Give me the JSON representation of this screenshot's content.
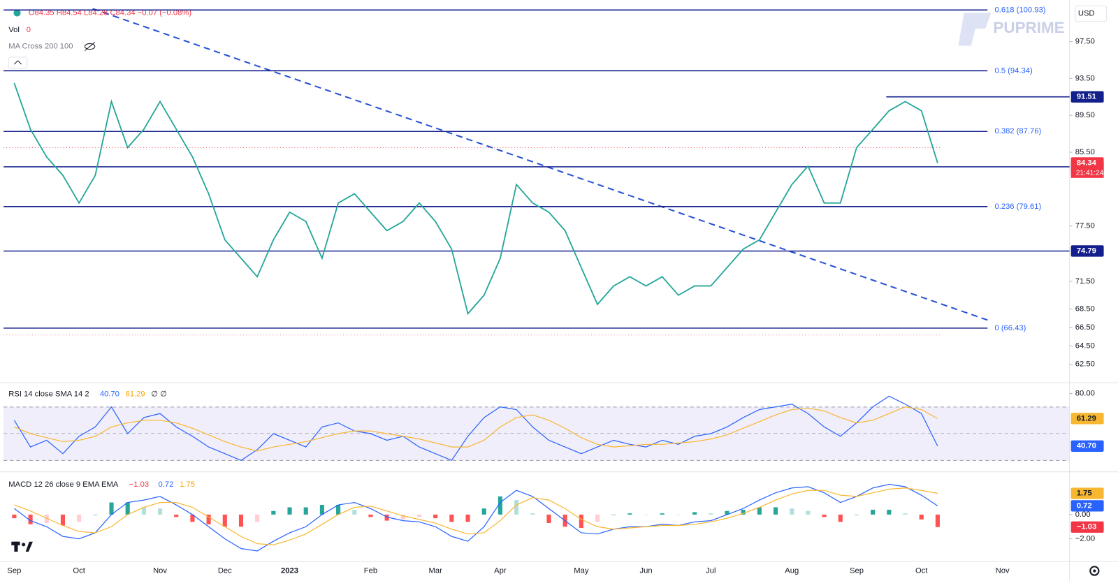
{
  "chart_data": [
    {
      "type": "line",
      "header": "O84.35 H84.54 L84.28 C84.34 −0.07 (−0.08%)",
      "volume_label": "Vol",
      "volume": 0,
      "indicator": "MA Cross 200 100",
      "currency": "USD",
      "brand": "PUPRIME",
      "categories": [
        "Sep",
        null,
        null,
        null,
        "Oct",
        null,
        null,
        null,
        null,
        "Nov",
        null,
        null,
        null,
        "Dec",
        null,
        null,
        null,
        "2023",
        null,
        null,
        null,
        null,
        "Feb",
        null,
        null,
        null,
        "Mar",
        null,
        null,
        null,
        "Apr",
        null,
        null,
        null,
        null,
        "May",
        null,
        null,
        null,
        "Jun",
        null,
        null,
        null,
        "Jul",
        null,
        null,
        null,
        null,
        "Aug",
        null,
        null,
        null,
        "Sep",
        null,
        null,
        null,
        "Oct",
        null,
        null,
        null,
        null,
        "Nov"
      ],
      "series": [
        {
          "color": "#26a69a",
          "values": [
            93,
            88,
            85,
            83,
            80,
            83,
            91,
            86,
            88,
            91,
            88,
            85,
            81,
            76,
            74,
            72,
            76,
            79,
            78,
            74,
            80,
            81,
            79,
            77,
            78,
            80,
            78,
            75,
            68,
            70,
            74,
            82,
            80,
            79,
            77,
            73,
            69,
            71,
            72,
            71,
            72,
            70,
            71,
            71,
            73,
            75,
            76,
            79,
            82,
            84,
            80,
            80,
            86,
            88,
            90,
            91,
            90,
            84.34,
            null,
            null,
            null,
            null
          ]
        }
      ],
      "ylim": [
        60.5,
        102
      ],
      "yticks": [
        {
          "value": 97.5,
          "label": "97.50"
        },
        {
          "value": 93.5,
          "label": "93.50"
        },
        {
          "value": 89.5,
          "label": "89.50"
        },
        {
          "value": 85.5,
          "label": "85.50"
        },
        {
          "value": 77.5,
          "label": "77.50"
        },
        {
          "value": 71.5,
          "label": "71.50"
        },
        {
          "value": 68.5,
          "label": "68.50"
        },
        {
          "value": 66.5,
          "label": "66.50"
        },
        {
          "value": 64.5,
          "label": "64.50"
        },
        {
          "value": 62.5,
          "label": "62.50"
        }
      ],
      "fib": [
        {
          "value": 100.93,
          "label": "0.618 (100.93)"
        },
        {
          "value": 94.34,
          "label": "0.5 (94.34)"
        },
        {
          "value": 87.76,
          "label": "0.382 (87.76)"
        },
        {
          "value": 79.61,
          "label": "0.236 (79.61)"
        },
        {
          "value": 66.43,
          "label": "0 (66.43)"
        }
      ],
      "levels": [
        91.51,
        83.92,
        74.79
      ],
      "level_color": "#131f8c",
      "fib_label_color": "#2962ff",
      "current": 84.34,
      "countdown": "21:41:24",
      "current_color": "#f23645"
    },
    {
      "type": "line",
      "title": "RSI 14 close SMA 14 2",
      "flags": "∅ ∅",
      "ylim": [
        22.5,
        86.4
      ],
      "yticks": [
        {
          "value": 80,
          "label": "80.00"
        }
      ],
      "series": [
        {
          "color": "#2962ff",
          "values": [
            60,
            40,
            45,
            35,
            48,
            55,
            70,
            50,
            62,
            65,
            55,
            48,
            40,
            35,
            30,
            38,
            50,
            45,
            40,
            55,
            58,
            52,
            50,
            45,
            48,
            40,
            35,
            30,
            48,
            62,
            70,
            68,
            55,
            45,
            40,
            35,
            40,
            45,
            42,
            40,
            45,
            42,
            48,
            50,
            55,
            62,
            68,
            70,
            72,
            65,
            55,
            48,
            58,
            70,
            78,
            72,
            65,
            40.7
          ],
          "badge": {
            "value": 40.7,
            "label": "40.70"
          }
        },
        {
          "color": "#f7b731",
          "values": [
            55,
            50,
            47,
            44,
            45,
            48,
            55,
            58,
            60,
            60,
            58,
            54,
            49,
            44,
            40,
            37,
            40,
            42,
            44,
            47,
            50,
            52,
            52,
            50,
            48,
            46,
            43,
            40,
            40,
            45,
            55,
            62,
            64,
            60,
            54,
            47,
            42,
            40,
            41,
            42,
            42,
            43,
            44,
            46,
            49,
            54,
            59,
            64,
            68,
            69,
            67,
            62,
            58,
            60,
            65,
            70,
            68,
            61.29
          ],
          "badge": {
            "value": 61.29,
            "label": "61.29"
          }
        }
      ]
    },
    {
      "type": "line",
      "title": "MACD 12 26 close 9 EMA EMA",
      "ylim": [
        -4,
        3.35
      ],
      "yticks": [
        {
          "value": 0,
          "label": "0.00"
        },
        {
          "value": -2,
          "label": "−2.00"
        }
      ],
      "histogram": {
        "values": [
          -0.3,
          -0.8,
          -0.7,
          -0.9,
          -0.6,
          0,
          1,
          1,
          0.6,
          0.5,
          -0.2,
          -0.6,
          -0.8,
          -1,
          -1,
          -0.6,
          0.3,
          0.6,
          0.6,
          0.8,
          0.8,
          0.4,
          -0.2,
          -0.5,
          -0.4,
          -0.2,
          -0.3,
          -0.6,
          -0.6,
          0.5,
          1.5,
          1.2,
          0.1,
          -0.7,
          -1,
          -1.1,
          -0.6,
          0,
          0.1,
          0,
          0.1,
          0,
          0.2,
          0.1,
          0.3,
          0.4,
          0.6,
          0.6,
          0.5,
          0.3,
          -0.2,
          -0.6,
          0,
          0.4,
          0.4,
          0.1,
          -0.4,
          -1.03
        ],
        "badge": {
          "value": -1.03,
          "label": "−1.03"
        },
        "color": "#f23645"
      },
      "series": [
        {
          "color": "#2962ff",
          "values": [
            0.5,
            -0.5,
            -1,
            -1.8,
            -2,
            -1.5,
            0,
            1,
            1.2,
            1.5,
            0.8,
            0,
            -1,
            -2,
            -2.8,
            -3,
            -2.2,
            -1.5,
            -1,
            0,
            0.8,
            1,
            0.5,
            -0.2,
            -0.5,
            -0.6,
            -1,
            -1.8,
            -2.2,
            -1,
            1,
            2,
            1.5,
            0.5,
            -0.5,
            -1.5,
            -1.6,
            -1.2,
            -1,
            -1,
            -0.8,
            -0.9,
            -0.6,
            -0.5,
            0,
            0.5,
            1.2,
            1.8,
            2.2,
            2.3,
            1.8,
            1,
            1.5,
            2.2,
            2.5,
            2.3,
            1.6,
            0.72
          ],
          "badge": {
            "value": 0.72,
            "label": "0.72"
          }
        },
        {
          "color": "#f7b731",
          "values": [
            0.8,
            0.3,
            -0.3,
            -0.9,
            -1.4,
            -1.5,
            -1,
            0,
            0.6,
            1,
            1,
            0.6,
            -0.2,
            -1,
            -1.8,
            -2.4,
            -2.5,
            -2.1,
            -1.6,
            -0.8,
            0,
            0.6,
            0.7,
            0.3,
            -0.1,
            -0.4,
            -0.7,
            -1.2,
            -1.6,
            -1.5,
            -0.5,
            0.8,
            1.4,
            1.2,
            0.5,
            -0.4,
            -1,
            -1.2,
            -1.1,
            -1,
            -0.9,
            -0.9,
            -0.8,
            -0.6,
            -0.3,
            0.1,
            0.6,
            1.2,
            1.7,
            2,
            2,
            1.6,
            1.5,
            1.8,
            2.1,
            2.2,
            2,
            1.75
          ],
          "badge": {
            "value": 1.75,
            "label": "1.75"
          }
        }
      ]
    }
  ]
}
